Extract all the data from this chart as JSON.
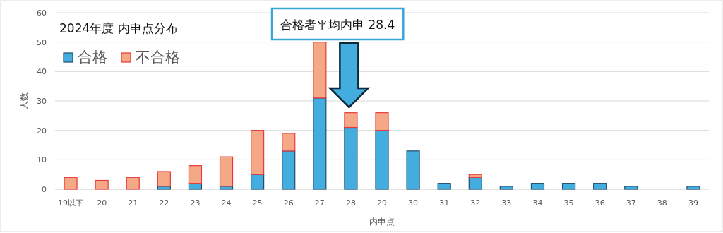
{
  "chart_data": {
    "type": "bar",
    "title": "2024年度 内申点分布",
    "xlabel": "内申点",
    "ylabel": "人数",
    "stacked": true,
    "grid": "y",
    "legend": "top left",
    "categories": [
      "19以下",
      "20",
      "21",
      "22",
      "23",
      "24",
      "25",
      "26",
      "27",
      "28",
      "29",
      "30",
      "31",
      "32",
      "33",
      "34",
      "35",
      "36",
      "37",
      "38",
      "39"
    ],
    "series": [
      {
        "name": "合格",
        "color": "#44ade0",
        "values": [
          0,
          0,
          0,
          1,
          2,
          1,
          5,
          13,
          31,
          21,
          20,
          13,
          2,
          4,
          1,
          2,
          2,
          2,
          1,
          0,
          1
        ]
      },
      {
        "name": "不合格",
        "color": "#f4a886",
        "values": [
          4,
          3,
          4,
          5,
          6,
          10,
          15,
          6,
          19,
          5,
          6,
          0,
          0,
          1,
          0,
          0,
          0,
          0,
          0,
          0,
          0
        ]
      }
    ],
    "ylim": [
      0,
      60
    ],
    "yticks": [
      0,
      10,
      20,
      30,
      40,
      50,
      60
    ],
    "annotations": [
      "合格者平均内申 28.4"
    ]
  }
}
